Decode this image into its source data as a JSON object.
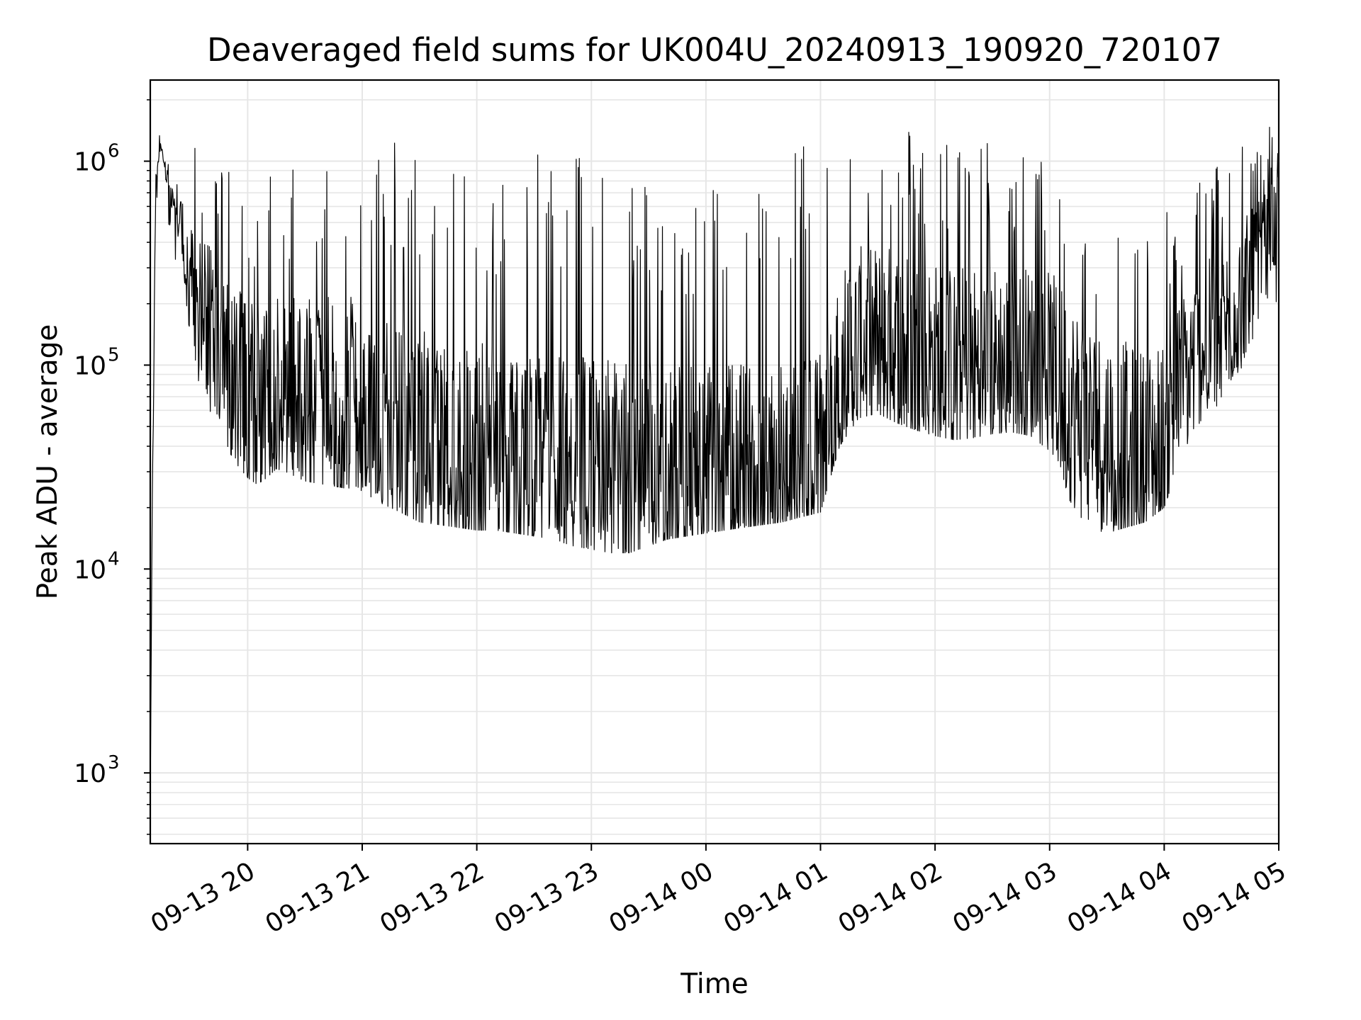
{
  "chart_data": {
    "type": "line",
    "title": "Deaveraged field sums for UK004U_20240913_190920_720107",
    "xlabel": "Time",
    "ylabel": "Peak ADU - average",
    "yscale": "log",
    "grid": true,
    "line_color": "#000000",
    "grid_color": "#e6e6e6",
    "xlim": [
      "2024-09-13 19:09",
      "2024-09-14 05:00"
    ],
    "ylim": [
      450,
      2500000
    ],
    "x_ticks": [
      {
        "value": "2024-09-13 20:00",
        "label": "09-13 20"
      },
      {
        "value": "2024-09-13 21:00",
        "label": "09-13 21"
      },
      {
        "value": "2024-09-13 22:00",
        "label": "09-13 22"
      },
      {
        "value": "2024-09-13 23:00",
        "label": "09-13 23"
      },
      {
        "value": "2024-09-14 00:00",
        "label": "09-14 00"
      },
      {
        "value": "2024-09-14 01:00",
        "label": "09-14 01"
      },
      {
        "value": "2024-09-14 02:00",
        "label": "09-14 02"
      },
      {
        "value": "2024-09-14 03:00",
        "label": "09-14 03"
      },
      {
        "value": "2024-09-14 04:00",
        "label": "09-14 04"
      },
      {
        "value": "2024-09-14 05:00",
        "label": "09-14 05"
      }
    ],
    "y_ticks": [
      {
        "value": 1000,
        "base": "10",
        "exponent": "3"
      },
      {
        "value": 10000,
        "base": "10",
        "exponent": "4"
      },
      {
        "value": 100000,
        "base": "10",
        "exponent": "5"
      },
      {
        "value": 1000000,
        "base": "10",
        "exponent": "6"
      }
    ],
    "series": [
      {
        "x": [
          "2024-09-13 19:09",
          "2024-09-13 19:10",
          "2024-09-13 19:12",
          "2024-09-13 19:14",
          "2024-09-13 19:18",
          "2024-09-13 19:22",
          "2024-09-13 19:26",
          "2024-09-13 19:30",
          "2024-09-13 19:35",
          "2024-09-13 19:40",
          "2024-09-13 19:45",
          "2024-09-13 19:50",
          "2024-09-13 19:55",
          "2024-09-13 20:00",
          "2024-09-13 20:05",
          "2024-09-13 20:10",
          "2024-09-13 20:15",
          "2024-09-13 20:20",
          "2024-09-13 20:30",
          "2024-09-13 20:40",
          "2024-09-13 20:50",
          "2024-09-13 21:00",
          "2024-09-13 21:10",
          "2024-09-13 21:20",
          "2024-09-13 21:30",
          "2024-09-13 21:40",
          "2024-09-13 21:50",
          "2024-09-13 22:00",
          "2024-09-13 22:10",
          "2024-09-13 22:20",
          "2024-09-13 22:30",
          "2024-09-13 22:40",
          "2024-09-13 22:50",
          "2024-09-13 23:00",
          "2024-09-13 23:10",
          "2024-09-13 23:20",
          "2024-09-13 23:30",
          "2024-09-13 23:40",
          "2024-09-13 23:50",
          "2024-09-14 00:00",
          "2024-09-14 00:10",
          "2024-09-14 00:20",
          "2024-09-14 00:30",
          "2024-09-14 00:40",
          "2024-09-14 00:50",
          "2024-09-14 01:00",
          "2024-09-14 01:10",
          "2024-09-14 01:20",
          "2024-09-14 01:30",
          "2024-09-14 01:40",
          "2024-09-14 01:50",
          "2024-09-14 02:00",
          "2024-09-14 02:10",
          "2024-09-14 02:20",
          "2024-09-14 02:30",
          "2024-09-14 02:40",
          "2024-09-14 02:50",
          "2024-09-14 03:00",
          "2024-09-14 03:10",
          "2024-09-14 03:20",
          "2024-09-14 03:30",
          "2024-09-14 03:40",
          "2024-09-14 03:50",
          "2024-09-14 04:00",
          "2024-09-14 04:10",
          "2024-09-14 04:20",
          "2024-09-14 04:30",
          "2024-09-14 04:40",
          "2024-09-14 04:50",
          "2024-09-14 05:00"
        ],
        "baseline": [
          700,
          20000,
          800000,
          1200000,
          800000,
          550000,
          400000,
          250000,
          180000,
          140000,
          110000,
          85000,
          70000,
          60000,
          55000,
          62000,
          70000,
          68000,
          62000,
          60000,
          57000,
          55000,
          48000,
          42000,
          38000,
          36000,
          34000,
          33000,
          32000,
          31000,
          30000,
          29000,
          28500,
          28000,
          27500,
          27000,
          26500,
          26000,
          25500,
          25000,
          25500,
          26000,
          27000,
          28000,
          30000,
          32000,
          80000,
          110000,
          115000,
          105000,
          95000,
          85000,
          80000,
          82000,
          85000,
          88000,
          90000,
          88000,
          60000,
          45000,
          38000,
          35000,
          33000,
          36000,
          80000,
          110000,
          130000,
          200000,
          300000,
          500000
        ],
        "upper": [
          700,
          40000,
          1000000,
          1400000,
          1000000,
          800000,
          1000000,
          1300000,
          1200000,
          1100000,
          1000000,
          900000,
          850000,
          800000,
          780000,
          820000,
          900000,
          950000,
          1000000,
          1050000,
          1100000,
          1150000,
          1200000,
          1250000,
          1300000,
          1200000,
          1100000,
          1000000,
          1050000,
          1150000,
          1250000,
          1300000,
          1200000,
          1100000,
          950000,
          900000,
          850000,
          800000,
          780000,
          760000,
          800000,
          900000,
          1100000,
          1250000,
          1300000,
          1250000,
          1200000,
          1350000,
          1450000,
          1550000,
          1500000,
          1400000,
          1350000,
          1400000,
          1300000,
          1200000,
          1100000,
          1000000,
          900000,
          700000,
          600000,
          520000,
          450000,
          550000,
          700000,
          900000,
          1100000,
          1300000,
          1400000,
          1600000
        ],
        "lower": [
          600,
          15000,
          500000,
          700000,
          450000,
          320000,
          180000,
          110000,
          75000,
          55000,
          45000,
          38000,
          32000,
          28000,
          26000,
          28000,
          31000,
          30000,
          27000,
          26000,
          25000,
          24000,
          21000,
          19000,
          17000,
          16500,
          16000,
          15500,
          15500,
          15000,
          14500,
          14000,
          13000,
          12500,
          12000,
          12000,
          13000,
          14000,
          14500,
          15000,
          15500,
          16000,
          16500,
          17000,
          18000,
          19000,
          40000,
          55000,
          58000,
          52000,
          48000,
          45000,
          43000,
          44000,
          46000,
          47000,
          45000,
          38000,
          22000,
          16000,
          15000,
          16000,
          17000,
          20000,
          38000,
          55000,
          65000,
          90000,
          150000,
          200000
        ]
      }
    ]
  }
}
